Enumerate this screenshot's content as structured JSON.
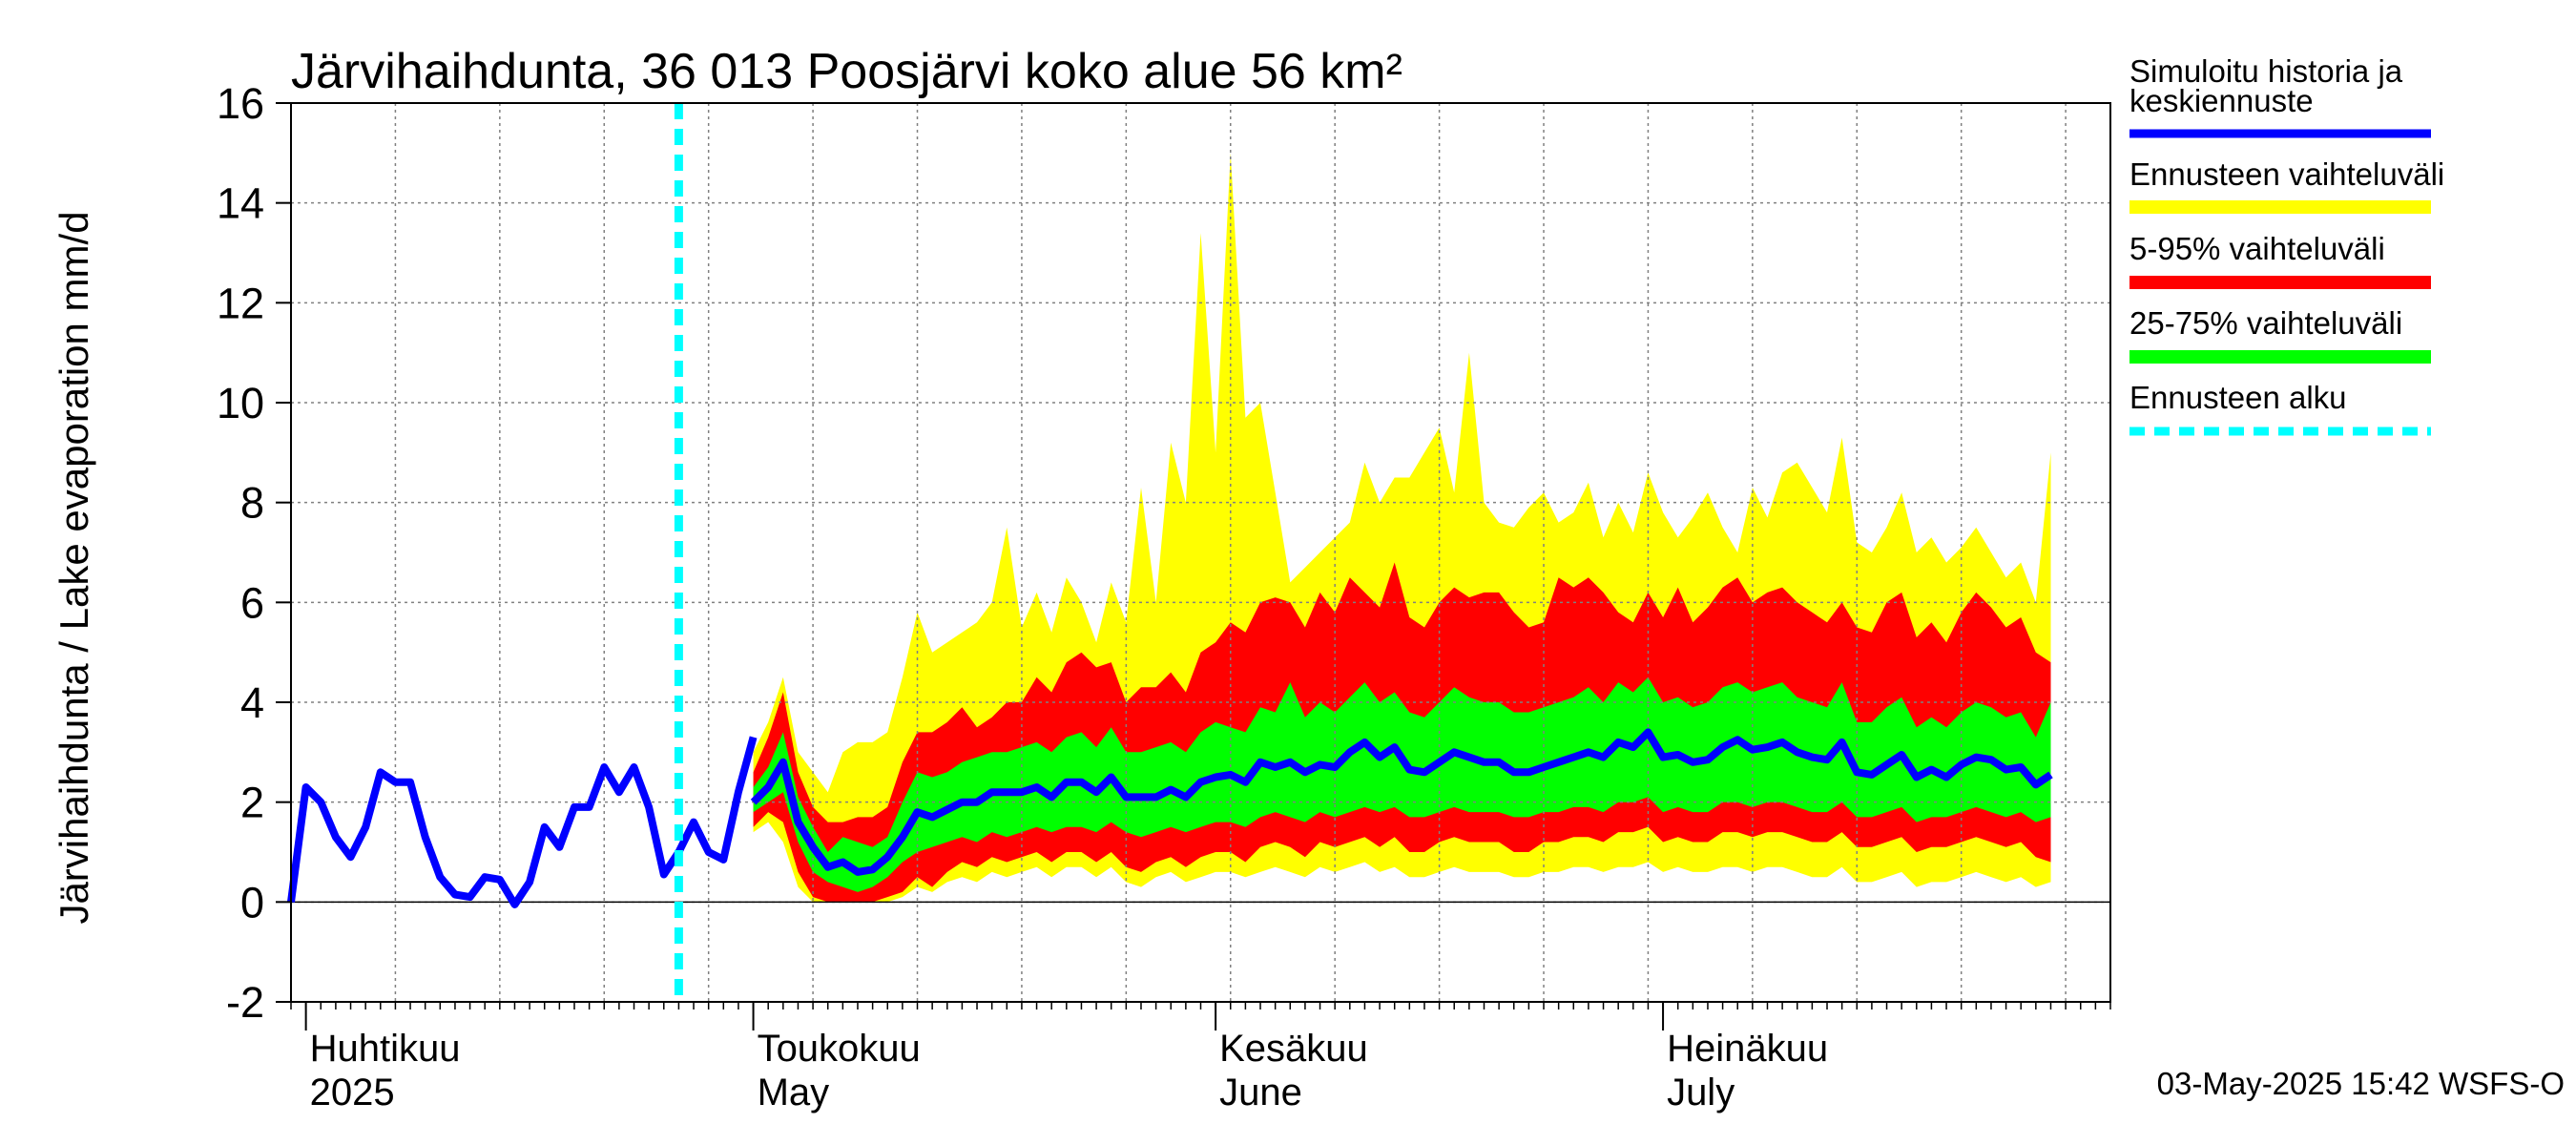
{
  "chart_data": {
    "type": "area",
    "title": "Järvihaihdunta, 36 013 Poosjärvi koko alue 56 km²",
    "ylabel": "Järvihaihdunta / Lake evaporation   mm/d",
    "ylim": [
      -2,
      16
    ],
    "yticks": [
      -2,
      0,
      2,
      4,
      6,
      8,
      10,
      12,
      14,
      16
    ],
    "grid": true,
    "legend_position": "right",
    "x_start": "2025-03-31",
    "x_end": "2025-07-31",
    "forecast_start": "2025-04-26",
    "month_labels": [
      {
        "date": "2025-04-01",
        "fi": "Huhtikuu",
        "en": "2025"
      },
      {
        "date": "2025-05-01",
        "fi": "Toukokuu",
        "en": "May"
      },
      {
        "date": "2025-06-01",
        "fi": "Kesäkuu",
        "en": "June"
      },
      {
        "date": "2025-07-01",
        "fi": "Heinäkuu",
        "en": "July"
      }
    ],
    "history": {
      "name": "Simuloitu historia ja keskiennuste",
      "start": "2025-03-31",
      "values": [
        0.0,
        2.3,
        2.0,
        1.3,
        0.9,
        1.5,
        2.6,
        2.4,
        2.4,
        1.3,
        0.5,
        0.15,
        0.1,
        0.5,
        0.45,
        -0.05,
        0.4,
        1.5,
        1.1,
        1.9,
        1.9,
        2.7,
        2.2,
        2.7,
        1.9,
        0.55,
        1.0,
        1.6,
        1.0,
        0.85,
        2.2,
        3.3
      ]
    },
    "forecast": {
      "start": "2025-05-01",
      "median": [
        2.0,
        2.3,
        2.8,
        1.6,
        1.1,
        0.7,
        0.8,
        0.6,
        0.65,
        0.9,
        1.3,
        1.8,
        1.7,
        1.85,
        2.0,
        2.0,
        2.2,
        2.2,
        2.2,
        2.3,
        2.1,
        2.4,
        2.4,
        2.2,
        2.5,
        2.1,
        2.1,
        2.1,
        2.25,
        2.1,
        2.4,
        2.5,
        2.55,
        2.4,
        2.8,
        2.7,
        2.8,
        2.6,
        2.75,
        2.7,
        3.0,
        3.2,
        2.9,
        3.1,
        2.65,
        2.6,
        2.8,
        3.0,
        2.9,
        2.8,
        2.8,
        2.6,
        2.6,
        2.7,
        2.8,
        2.9,
        3.0,
        2.9,
        3.2,
        3.1,
        3.4,
        2.9,
        2.95,
        2.8,
        2.85,
        3.1,
        3.25,
        3.05,
        3.1,
        3.2,
        3.0,
        2.9,
        2.85,
        3.2,
        2.6,
        2.55,
        2.75,
        2.95,
        2.5,
        2.65,
        2.5,
        2.75,
        2.9,
        2.85,
        2.65,
        2.7,
        2.35,
        2.55
      ],
      "p25": [
        1.8,
        2.0,
        2.2,
        1.2,
        0.6,
        0.4,
        0.3,
        0.2,
        0.3,
        0.5,
        0.8,
        1.0,
        1.1,
        1.2,
        1.3,
        1.2,
        1.4,
        1.3,
        1.4,
        1.5,
        1.4,
        1.5,
        1.5,
        1.4,
        1.6,
        1.4,
        1.3,
        1.4,
        1.5,
        1.4,
        1.5,
        1.6,
        1.6,
        1.5,
        1.7,
        1.8,
        1.7,
        1.6,
        1.8,
        1.7,
        1.8,
        1.9,
        1.8,
        1.9,
        1.7,
        1.7,
        1.8,
        1.9,
        1.8,
        1.8,
        1.8,
        1.7,
        1.7,
        1.8,
        1.8,
        1.9,
        1.9,
        1.8,
        2.0,
        2.0,
        2.1,
        1.8,
        1.9,
        1.8,
        1.8,
        2.0,
        2.0,
        1.9,
        2.0,
        2.0,
        1.9,
        1.8,
        1.8,
        2.0,
        1.7,
        1.7,
        1.8,
        1.9,
        1.6,
        1.7,
        1.7,
        1.8,
        1.9,
        1.8,
        1.7,
        1.8,
        1.6,
        1.7
      ],
      "p75": [
        2.3,
        2.7,
        3.4,
        2.1,
        1.5,
        1.0,
        1.3,
        1.2,
        1.1,
        1.3,
        2.0,
        2.6,
        2.5,
        2.6,
        2.8,
        2.9,
        3.0,
        3.0,
        3.1,
        3.2,
        3.0,
        3.3,
        3.4,
        3.1,
        3.5,
        3.0,
        3.0,
        3.1,
        3.2,
        3.0,
        3.4,
        3.6,
        3.5,
        3.4,
        3.9,
        3.8,
        4.4,
        3.7,
        4.0,
        3.8,
        4.1,
        4.4,
        4.0,
        4.2,
        3.8,
        3.7,
        4.0,
        4.3,
        4.1,
        4.0,
        4.0,
        3.8,
        3.8,
        3.9,
        4.0,
        4.1,
        4.3,
        4.0,
        4.4,
        4.2,
        4.5,
        4.0,
        4.1,
        3.9,
        4.0,
        4.3,
        4.4,
        4.2,
        4.3,
        4.4,
        4.1,
        4.0,
        3.9,
        4.4,
        3.6,
        3.6,
        3.9,
        4.1,
        3.5,
        3.7,
        3.5,
        3.8,
        4.0,
        3.9,
        3.7,
        3.8,
        3.3,
        4.0
      ],
      "p5": [
        1.5,
        1.8,
        1.6,
        0.6,
        0.1,
        0.0,
        0.0,
        0.0,
        0.0,
        0.1,
        0.2,
        0.5,
        0.3,
        0.6,
        0.8,
        0.7,
        0.9,
        0.8,
        0.9,
        1.0,
        0.8,
        1.0,
        1.0,
        0.8,
        1.0,
        0.7,
        0.6,
        0.8,
        0.9,
        0.7,
        0.9,
        1.0,
        1.0,
        0.8,
        1.1,
        1.2,
        1.1,
        0.9,
        1.2,
        1.1,
        1.2,
        1.3,
        1.1,
        1.3,
        1.0,
        1.0,
        1.2,
        1.3,
        1.2,
        1.2,
        1.2,
        1.0,
        1.0,
        1.2,
        1.2,
        1.3,
        1.3,
        1.2,
        1.4,
        1.4,
        1.5,
        1.2,
        1.3,
        1.2,
        1.2,
        1.4,
        1.4,
        1.3,
        1.4,
        1.4,
        1.3,
        1.2,
        1.2,
        1.4,
        1.1,
        1.1,
        1.2,
        1.3,
        1.0,
        1.1,
        1.1,
        1.2,
        1.3,
        1.2,
        1.1,
        1.2,
        0.9,
        0.8
      ],
      "p95": [
        2.6,
        3.3,
        4.2,
        2.6,
        1.9,
        1.6,
        1.6,
        1.7,
        1.7,
        1.9,
        2.8,
        3.4,
        3.4,
        3.6,
        3.9,
        3.5,
        3.7,
        4.0,
        4.0,
        4.5,
        4.2,
        4.8,
        5.0,
        4.7,
        4.8,
        4.0,
        4.3,
        4.3,
        4.6,
        4.2,
        5.0,
        5.2,
        5.6,
        5.4,
        6.0,
        6.1,
        6.0,
        5.5,
        6.2,
        5.8,
        6.5,
        6.2,
        5.9,
        6.8,
        5.7,
        5.5,
        6.0,
        6.3,
        6.1,
        6.2,
        6.2,
        5.8,
        5.5,
        5.6,
        6.5,
        6.3,
        6.5,
        6.2,
        5.8,
        5.6,
        6.2,
        5.7,
        6.3,
        5.6,
        5.9,
        6.3,
        6.5,
        6.0,
        6.2,
        6.3,
        6.0,
        5.8,
        5.6,
        6.0,
        5.5,
        5.4,
        6.0,
        6.2,
        5.3,
        5.6,
        5.2,
        5.8,
        6.2,
        5.9,
        5.5,
        5.7,
        5.0,
        4.8
      ],
      "min": [
        1.4,
        1.6,
        1.2,
        0.3,
        0.0,
        0.0,
        0.0,
        0.0,
        0.0,
        0.0,
        0.1,
        0.3,
        0.2,
        0.4,
        0.5,
        0.4,
        0.6,
        0.5,
        0.6,
        0.7,
        0.5,
        0.7,
        0.7,
        0.5,
        0.7,
        0.4,
        0.3,
        0.5,
        0.6,
        0.4,
        0.5,
        0.6,
        0.6,
        0.5,
        0.6,
        0.7,
        0.6,
        0.5,
        0.7,
        0.6,
        0.7,
        0.8,
        0.6,
        0.7,
        0.5,
        0.5,
        0.6,
        0.7,
        0.6,
        0.6,
        0.6,
        0.5,
        0.5,
        0.6,
        0.6,
        0.7,
        0.7,
        0.6,
        0.7,
        0.7,
        0.8,
        0.6,
        0.7,
        0.6,
        0.6,
        0.7,
        0.7,
        0.6,
        0.7,
        0.7,
        0.6,
        0.5,
        0.5,
        0.7,
        0.4,
        0.4,
        0.5,
        0.6,
        0.3,
        0.4,
        0.4,
        0.5,
        0.6,
        0.5,
        0.4,
        0.5,
        0.3,
        0.4
      ],
      "max": [
        3.0,
        3.6,
        4.5,
        3.0,
        2.6,
        2.2,
        3.0,
        3.2,
        3.2,
        3.4,
        4.5,
        5.8,
        5.0,
        5.2,
        5.4,
        5.6,
        6.0,
        7.5,
        5.5,
        6.2,
        5.4,
        6.5,
        6.0,
        5.2,
        6.4,
        5.6,
        8.3,
        6.0,
        9.2,
        8.0,
        13.4,
        9.0,
        15.0,
        9.7,
        10.0,
        8.2,
        6.4,
        6.7,
        7.0,
        7.3,
        7.6,
        8.8,
        8.0,
        8.5,
        8.5,
        9.0,
        9.5,
        8.2,
        11.0,
        8.0,
        7.6,
        7.5,
        7.9,
        8.2,
        7.6,
        7.8,
        8.4,
        7.3,
        8.0,
        7.4,
        8.6,
        7.8,
        7.3,
        7.7,
        8.2,
        7.5,
        7.0,
        8.3,
        7.7,
        8.6,
        8.8,
        8.3,
        7.8,
        9.3,
        7.2,
        7.0,
        7.5,
        8.2,
        7.0,
        7.3,
        6.8,
        7.1,
        7.5,
        7.0,
        6.5,
        6.8,
        6.0,
        9.0
      ]
    }
  },
  "legend": [
    {
      "label": "Simuloitu historia ja",
      "label2": "keskiennuste",
      "color": "#0000ff"
    },
    {
      "label": "Ennusteen vaihteluväli",
      "color": "#ffff00"
    },
    {
      "label": "5-95% vaihteluväli",
      "color": "#ff0000"
    },
    {
      "label": "25-75% vaihteluväli",
      "color": "#00ff00"
    },
    {
      "label": "Ennusteen alku",
      "color": "#00ffff"
    }
  ],
  "colors": {
    "history": "#0000ff",
    "minmax": "#ffff00",
    "p5_95": "#ff0000",
    "p25_75": "#00ff00",
    "forecast_start": "#00ffff",
    "grid": "#808080"
  },
  "footer": {
    "timestamp": "03-May-2025 15:42 WSFS-O"
  }
}
